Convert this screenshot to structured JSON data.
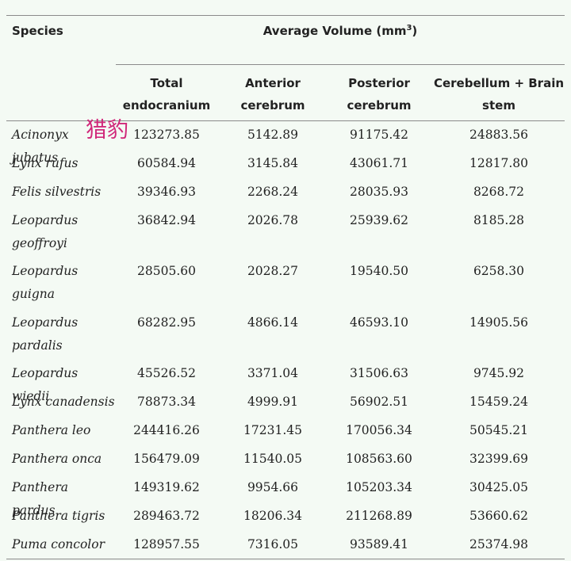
{
  "header": {
    "species": "Species",
    "group_title": "Average Volume (mm",
    "group_title_sup": "3",
    "group_title_end": ")",
    "columns": [
      {
        "line1": "Total",
        "line2": "endocranium"
      },
      {
        "line1": "Anterior",
        "line2": "cerebrum"
      },
      {
        "line1": "Posterior",
        "line2": "cerebrum"
      },
      {
        "line1": "Cerebellum + Brain",
        "line2": "stem"
      }
    ]
  },
  "overlay_text": "猎豹",
  "rows": [
    {
      "species": [
        "Acinonyx jubatus"
      ],
      "values": [
        "123273.85",
        "5142.89",
        "91175.42",
        "24883.56"
      ]
    },
    {
      "species": [
        "Lynx rufus"
      ],
      "values": [
        "60584.94",
        "3145.84",
        "43061.71",
        "12817.80"
      ]
    },
    {
      "species": [
        "Felis silvestris"
      ],
      "values": [
        "39346.93",
        "2268.24",
        "28035.93",
        "8268.72"
      ]
    },
    {
      "species": [
        "Leopardus",
        "geoffroyi"
      ],
      "values": [
        "36842.94",
        "2026.78",
        "25939.62",
        "8185.28"
      ]
    },
    {
      "species": [
        "Leopardus",
        "guigna"
      ],
      "values": [
        "28505.60",
        "2028.27",
        "19540.50",
        "6258.30"
      ]
    },
    {
      "species": [
        "Leopardus",
        "pardalis"
      ],
      "values": [
        "68282.95",
        "4866.14",
        "46593.10",
        "14905.56"
      ]
    },
    {
      "species": [
        "Leopardus wiedii"
      ],
      "values": [
        "45526.52",
        "3371.04",
        "31506.63",
        "9745.92"
      ]
    },
    {
      "species": [
        "Lynx canadensis"
      ],
      "values": [
        "78873.34",
        "4999.91",
        "56902.51",
        "15459.24"
      ]
    },
    {
      "species": [
        "Panthera leo"
      ],
      "values": [
        "244416.26",
        "17231.45",
        "170056.34",
        "50545.21"
      ]
    },
    {
      "species": [
        "Panthera onca"
      ],
      "values": [
        "156479.09",
        "11540.05",
        "108563.60",
        "32399.69"
      ]
    },
    {
      "species": [
        "Panthera pardus"
      ],
      "values": [
        "149319.62",
        "9954.66",
        "105203.34",
        "30425.05"
      ]
    },
    {
      "species": [
        "Panthera tigris"
      ],
      "values": [
        "289463.72",
        "18206.34",
        "211268.89",
        "53660.62"
      ]
    },
    {
      "species": [
        "Puma concolor"
      ],
      "values": [
        "128957.55",
        "7316.05",
        "93589.41",
        "25374.98"
      ]
    }
  ]
}
